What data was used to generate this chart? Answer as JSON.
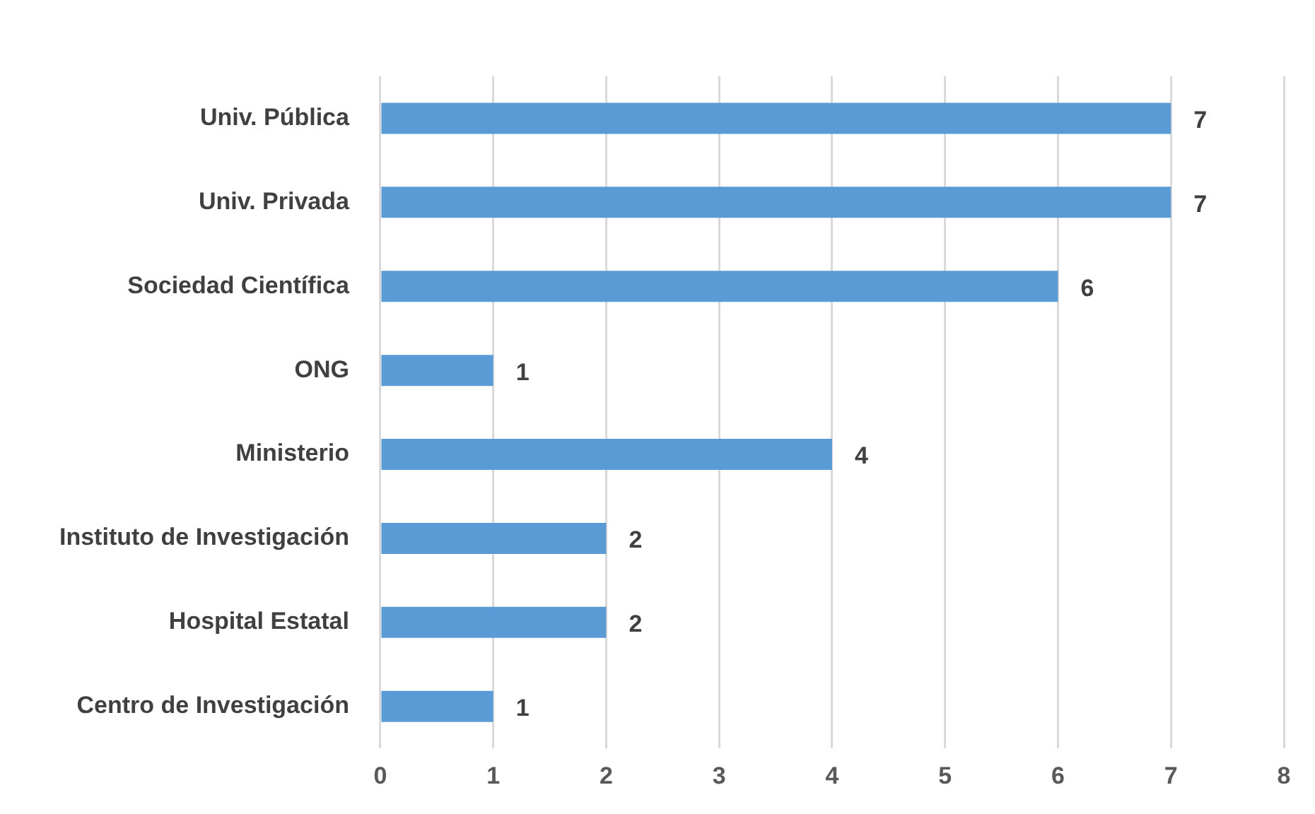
{
  "chart_data": {
    "type": "bar",
    "orientation": "horizontal",
    "categories": [
      "Univ. Pública",
      "Univ. Privada",
      "Sociedad Científica",
      "ONG",
      "Ministerio",
      "Instituto de Investigación",
      "Hospital Estatal",
      "Centro de Investigación"
    ],
    "values": [
      7,
      7,
      6,
      1,
      4,
      2,
      2,
      1
    ],
    "color": "#5b9bd5",
    "xlim": [
      0,
      8
    ],
    "xticks": [
      0,
      1,
      2,
      3,
      4,
      5,
      6,
      7,
      8
    ],
    "grid": "x",
    "data_labels": true,
    "legend": false
  }
}
